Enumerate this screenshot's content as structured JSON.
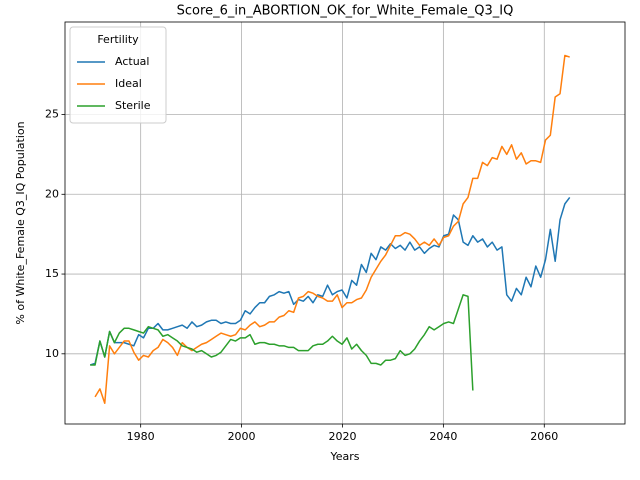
{
  "chart_data": {
    "type": "line",
    "title": "Score_6_in_ABORTION_OK_for_White_Female_Q3_IQ",
    "xlabel": "Years",
    "ylabel": "% of White_Female Q3_IQ Population",
    "legend_title": "Fertility",
    "legend": "upper left",
    "grid": true,
    "xlim": [
      1965,
      2076
    ],
    "ylim": [
      5.6,
      30.8
    ],
    "xticks": [
      1980,
      2000,
      2020,
      2040,
      2060
    ],
    "yticks": [
      10,
      15,
      20,
      25
    ],
    "x": [
      1970,
      1970.96,
      1971.92,
      1972.88,
      1973.84,
      1974.8,
      1975.76,
      1976.72,
      1977.68,
      1978.64,
      1979.6,
      1980.56,
      1981.52,
      1982.48,
      1983.44,
      1984.4,
      1985.36,
      1986.32,
      1987.28,
      1988.24,
      1989.2,
      1990.16,
      1991.12,
      1992.08,
      1993.04,
      1994,
      1994.96,
      1995.92,
      1996.88,
      1997.84,
      1998.8,
      1999.76,
      2000.72,
      2001.68,
      2002.64,
      2003.6,
      2004.56,
      2005.52,
      2006.48,
      2007.44,
      2008.4,
      2009.36,
      2010.32,
      2011.28,
      2012.24,
      2013.2,
      2014.16,
      2015.12,
      2016.08,
      2017.04,
      2018,
      2018.96,
      2019.92,
      2020.88,
      2021.84,
      2022.8,
      2023.76,
      2024.72,
      2025.68,
      2026.64,
      2027.6,
      2028.56,
      2029.52,
      2030.48,
      2031.44,
      2032.4,
      2033.36,
      2034.32,
      2035.28,
      2036.24,
      2037.2,
      2038.16,
      2039.12,
      2040.08,
      2041.04,
      2042,
      2042.96,
      2043.92,
      2044.88,
      2045.84,
      2046.8,
      2047.76,
      2048.72,
      2049.68,
      2050.64,
      2051.6,
      2052.56,
      2053.52,
      2054.48,
      2055.44,
      2056.4,
      2057.36,
      2058.32,
      2059.28,
      2060.24,
      2061.2,
      2062.16,
      2063.12,
      2064.08,
      2065.04
    ],
    "series": [
      {
        "name": "Actual",
        "color": "#1f77b4",
        "values": [
          9.3,
          9.4,
          10.8,
          9.8,
          11.4,
          10.7,
          10.7,
          10.7,
          10.6,
          10.5,
          11.2,
          11.0,
          11.6,
          11.6,
          11.9,
          11.5,
          11.5,
          11.6,
          11.7,
          11.8,
          11.6,
          12.0,
          11.7,
          11.8,
          12.0,
          12.1,
          12.1,
          11.9,
          12.0,
          11.9,
          11.9,
          12.1,
          12.7,
          12.5,
          12.9,
          13.2,
          13.2,
          13.6,
          13.7,
          13.9,
          13.8,
          13.9,
          13.1,
          13.4,
          13.3,
          13.6,
          13.2,
          13.7,
          13.6,
          14.3,
          13.7,
          13.9,
          14.0,
          13.5,
          14.6,
          14.3,
          15.6,
          15.1,
          16.3,
          15.9,
          16.7,
          16.5,
          16.9,
          16.6,
          16.8,
          16.5,
          17.0,
          16.5,
          16.7,
          16.3,
          16.6,
          16.8,
          16.7,
          17.4,
          17.5,
          18.7,
          18.4,
          17.0,
          16.8,
          17.4,
          17.0,
          17.2,
          16.7,
          17.0,
          16.5,
          16.7,
          13.7,
          13.3,
          14.1,
          13.7,
          14.8,
          14.2,
          15.5,
          14.8,
          15.9,
          17.8,
          15.8,
          18.4,
          19.4,
          19.8
        ]
      },
      {
        "name": "Ideal",
        "color": "#ff7f0e",
        "values": [
          null,
          7.3,
          7.8,
          6.9,
          10.5,
          10.0,
          10.4,
          10.8,
          10.8,
          10.1,
          9.6,
          9.9,
          9.8,
          10.2,
          10.4,
          10.9,
          10.7,
          10.4,
          9.9,
          10.7,
          10.4,
          10.2,
          10.4,
          10.6,
          10.7,
          10.9,
          11.1,
          11.3,
          11.2,
          11.1,
          11.2,
          11.6,
          11.5,
          11.8,
          12.0,
          11.7,
          11.8,
          12.0,
          12.0,
          12.3,
          12.4,
          12.7,
          12.6,
          13.5,
          13.6,
          13.9,
          13.8,
          13.6,
          13.5,
          13.3,
          13.3,
          13.7,
          12.9,
          13.2,
          13.2,
          13.4,
          13.5,
          14.0,
          14.8,
          15.3,
          15.8,
          16.2,
          16.8,
          17.4,
          17.4,
          17.6,
          17.5,
          17.2,
          16.8,
          17.0,
          16.8,
          17.2,
          16.8,
          17.3,
          17.4,
          18.0,
          18.3,
          19.4,
          19.8,
          21.0,
          21.0,
          22.0,
          21.8,
          22.3,
          22.2,
          23.0,
          22.5,
          23.1,
          22.2,
          22.6,
          21.9,
          22.1,
          22.1,
          22.0,
          23.4,
          23.7,
          26.1,
          26.3,
          28.7,
          28.6
        ]
      },
      {
        "name": "Sterile",
        "color": "#2ca02c",
        "values": [
          9.3,
          9.3,
          10.8,
          9.8,
          11.4,
          10.7,
          11.3,
          11.6,
          11.6,
          11.5,
          11.4,
          11.3,
          11.7,
          11.6,
          11.5,
          11.1,
          11.2,
          11.0,
          10.8,
          10.5,
          10.4,
          10.3,
          10.1,
          10.2,
          10.0,
          9.8,
          9.9,
          10.1,
          10.5,
          10.9,
          10.8,
          11.0,
          11.0,
          11.2,
          10.6,
          10.7,
          10.7,
          10.6,
          10.6,
          10.5,
          10.5,
          10.4,
          10.4,
          10.2,
          10.2,
          10.2,
          10.5,
          10.6,
          10.6,
          10.8,
          11.1,
          10.8,
          10.6,
          11.0,
          10.3,
          10.6,
          10.2,
          9.9,
          9.4,
          9.4,
          9.3,
          9.6,
          9.6,
          9.7,
          10.2,
          9.9,
          10.0,
          10.3,
          10.8,
          11.2,
          11.7,
          11.5,
          11.7,
          11.9,
          12.0,
          11.9,
          12.8,
          13.7,
          13.6,
          7.7,
          null,
          null,
          null,
          null,
          null,
          null,
          null,
          null,
          null,
          null,
          null,
          null,
          null,
          null,
          null,
          null,
          null,
          null,
          null,
          null
        ]
      }
    ]
  }
}
